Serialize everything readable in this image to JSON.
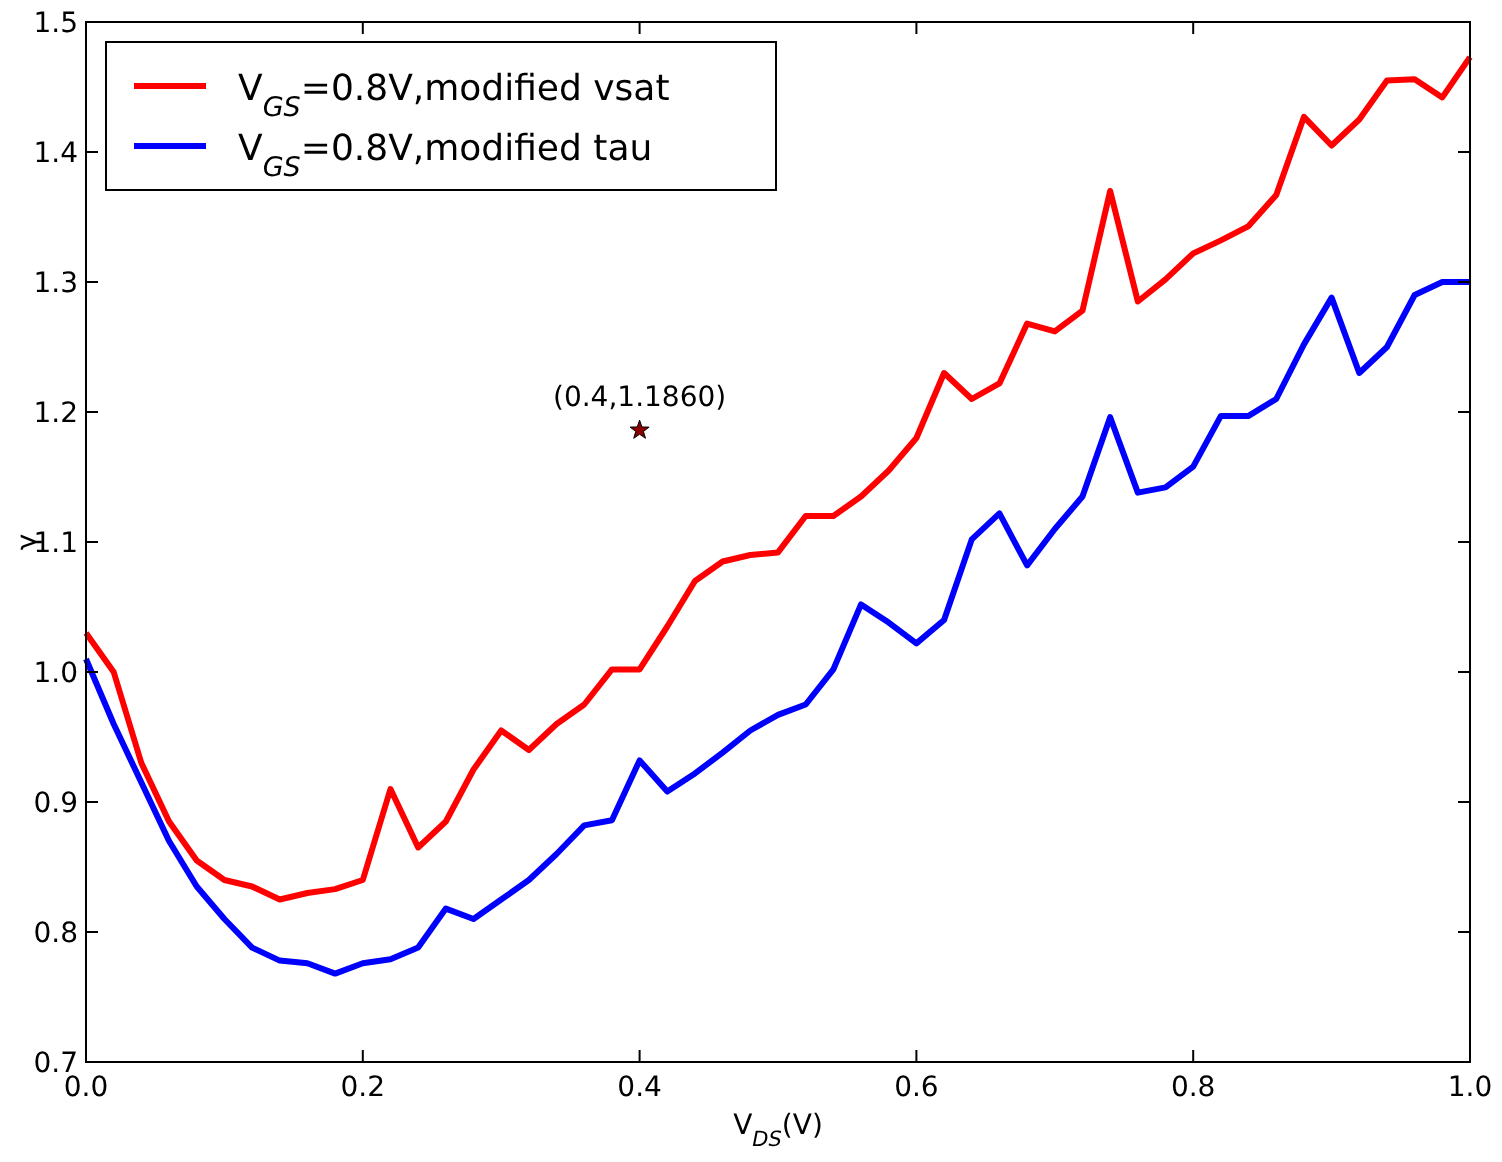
{
  "chart_data": {
    "type": "line",
    "xlabel": "V$_{DS}$(V)",
    "ylabel": "γ",
    "x": [
      0,
      0.02,
      0.04,
      0.06,
      0.08,
      0.1,
      0.12,
      0.14,
      0.16,
      0.18,
      0.2,
      0.22,
      0.24,
      0.26,
      0.28,
      0.3,
      0.32,
      0.34,
      0.36,
      0.38,
      0.4,
      0.42,
      0.44,
      0.46,
      0.48,
      0.5,
      0.52,
      0.54,
      0.56,
      0.58,
      0.6,
      0.62,
      0.64,
      0.66,
      0.68,
      0.7,
      0.72,
      0.74,
      0.76,
      0.78,
      0.8,
      0.82,
      0.84,
      0.86,
      0.88,
      0.9,
      0.92,
      0.94,
      0.96,
      0.98,
      1.0
    ],
    "series": [
      {
        "name": "V$_{GS}$=0.8V,modified vsat",
        "color": "#ff0000",
        "values": [
          1.03,
          1.0,
          0.93,
          0.885,
          0.855,
          0.84,
          0.835,
          0.825,
          0.83,
          0.833,
          0.84,
          0.91,
          0.865,
          0.885,
          0.925,
          0.955,
          0.94,
          0.96,
          0.975,
          1.002,
          1.002,
          1.035,
          1.07,
          1.085,
          1.09,
          1.092,
          1.12,
          1.12,
          1.135,
          1.155,
          1.18,
          1.23,
          1.21,
          1.222,
          1.268,
          1.262,
          1.278,
          1.37,
          1.285,
          1.302,
          1.322,
          1.332,
          1.343,
          1.367,
          1.427,
          1.405,
          1.425,
          1.455,
          1.456,
          1.442,
          1.473
        ]
      },
      {
        "name": "V$_{GS}$=0.8V,modified tau",
        "color": "#0000ff",
        "values": [
          1.01,
          0.96,
          0.915,
          0.87,
          0.835,
          0.81,
          0.788,
          0.778,
          0.776,
          0.768,
          0.776,
          0.779,
          0.788,
          0.818,
          0.81,
          0.825,
          0.84,
          0.86,
          0.882,
          0.886,
          0.932,
          0.908,
          0.922,
          0.938,
          0.955,
          0.967,
          0.975,
          1.002,
          1.052,
          1.038,
          1.022,
          1.04,
          1.102,
          1.122,
          1.082,
          1.11,
          1.135,
          1.196,
          1.138,
          1.142,
          1.158,
          1.197,
          1.197,
          1.21,
          1.252,
          1.288,
          1.23,
          1.25,
          1.29,
          1.3,
          1.3
        ]
      },
      {
        "type": "scatter",
        "marker": "star",
        "color": "#8b0000",
        "x": [
          0.4
        ],
        "values": [
          1.186
        ]
      }
    ],
    "annotations": [
      {
        "text": "(0.4,1.1860)",
        "x": 0.4,
        "y": 1.186
      }
    ],
    "xlim": [
      0,
      1
    ],
    "xticks": [
      {
        "value": 0,
        "label": "0.0"
      },
      0.2,
      0.4,
      0.6,
      0.8,
      {
        "value": 1,
        "label": "1.0"
      }
    ],
    "ylim": [
      0.7,
      1.5
    ],
    "yticks": [
      0.7,
      0.8,
      0.9,
      {
        "value": 1,
        "label": "1.0"
      },
      1.1,
      1.2,
      1.3,
      1.4,
      1.5
    ],
    "legend": "top left",
    "marker": "none",
    "line_style": "solid",
    "grid": false
  }
}
